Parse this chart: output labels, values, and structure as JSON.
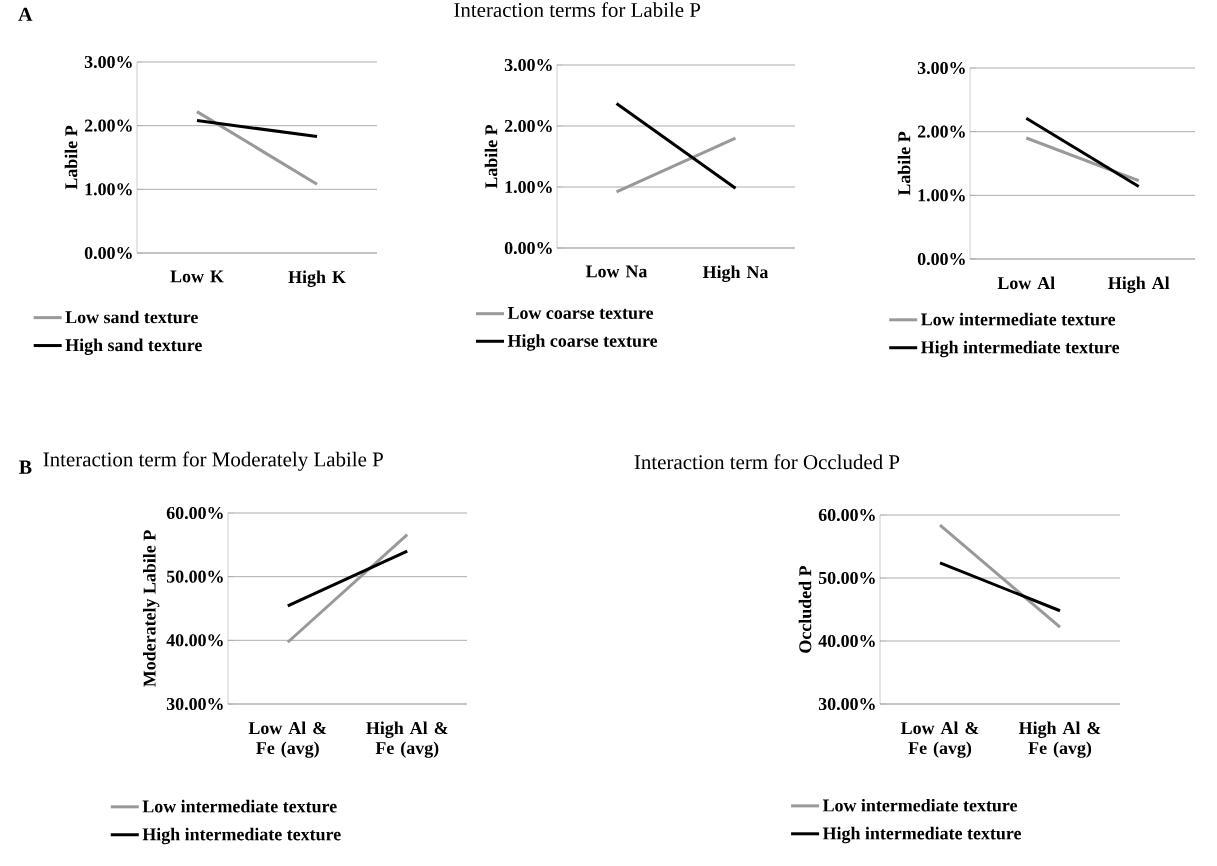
{
  "chart_data": [
    {
      "type": "line",
      "ylabel": "Labile P",
      "annotations": [
        "A"
      ],
      "categories": [
        "Low K",
        "High K"
      ],
      "ylim": [
        0,
        3
      ],
      "yticks": [
        {
          "value": 0,
          "label": "0.00%"
        },
        {
          "value": 1,
          "label": "1.00%"
        },
        {
          "value": 2,
          "label": "2.00%"
        },
        {
          "value": 3,
          "label": "3.00%"
        }
      ],
      "grid": "y",
      "legend": "bottom",
      "series": [
        {
          "name": "Low sand texture",
          "color": "#999999",
          "values": [
            2.22,
            1.08
          ]
        },
        {
          "name": "High sand texture",
          "color": "#000000",
          "values": [
            2.08,
            1.83
          ]
        }
      ]
    },
    {
      "type": "line",
      "title": "Interaction terms for Labile P",
      "ylabel": "Labile P",
      "categories": [
        "Low Na",
        "High Na"
      ],
      "ylim": [
        0,
        3
      ],
      "yticks": [
        {
          "value": 0,
          "label": "0.00%"
        },
        {
          "value": 1,
          "label": "1.00%"
        },
        {
          "value": 2,
          "label": "2.00%"
        },
        {
          "value": 3,
          "label": "3.00%"
        }
      ],
      "grid": "y",
      "legend": "bottom",
      "series": [
        {
          "name": "Low coarse texture",
          "color": "#999999",
          "values": [
            0.92,
            1.8
          ]
        },
        {
          "name": "High coarse texture",
          "color": "#000000",
          "values": [
            2.37,
            0.98
          ]
        }
      ]
    },
    {
      "type": "line",
      "ylabel": "Labile P",
      "categories": [
        "Low Al",
        "High Al"
      ],
      "ylim": [
        0,
        3
      ],
      "yticks": [
        {
          "value": 0,
          "label": "0.00%"
        },
        {
          "value": 1,
          "label": "1.00%"
        },
        {
          "value": 2,
          "label": "2.00%"
        },
        {
          "value": 3,
          "label": "3.00%"
        }
      ],
      "grid": "y",
      "legend": "bottom",
      "series": [
        {
          "name": "Low intermediate texture",
          "color": "#999999",
          "values": [
            1.9,
            1.23
          ]
        },
        {
          "name": "High intermediate texture",
          "color": "#000000",
          "values": [
            2.21,
            1.14
          ]
        }
      ]
    },
    {
      "type": "line",
      "title": "Interaction term for Moderately Labile P",
      "ylabel": "Moderately Labile P",
      "annotations": [
        "B"
      ],
      "categories": [
        "Low Al & Fe (avg)",
        "High Al & Fe (avg)"
      ],
      "ylim": [
        30,
        60
      ],
      "yticks": [
        {
          "value": 30,
          "label": "30.00%"
        },
        {
          "value": 40,
          "label": "40.00%"
        },
        {
          "value": 50,
          "label": "50.00%"
        },
        {
          "value": 60,
          "label": "60.00%"
        }
      ],
      "grid": "y",
      "legend": "bottom",
      "series": [
        {
          "name": "Low intermediate texture",
          "color": "#999999",
          "values": [
            39.7,
            56.6
          ]
        },
        {
          "name": "High intermediate texture",
          "color": "#000000",
          "values": [
            45.4,
            54.0
          ]
        }
      ]
    },
    {
      "type": "line",
      "title": "Interaction term for Occluded P",
      "ylabel": "Occluded P",
      "categories": [
        "Low Al & Fe (avg)",
        "High Al & Fe (avg)"
      ],
      "ylim": [
        30,
        60
      ],
      "yticks": [
        {
          "value": 30,
          "label": "30.00%"
        },
        {
          "value": 40,
          "label": "40.00%"
        },
        {
          "value": 50,
          "label": "50.00%"
        },
        {
          "value": 60,
          "label": "60.00%"
        }
      ],
      "grid": "y",
      "legend": "bottom",
      "series": [
        {
          "name": "Low intermediate texture",
          "color": "#999999",
          "values": [
            58.4,
            42.2
          ]
        },
        {
          "name": "High intermediate texture",
          "color": "#000000",
          "values": [
            52.4,
            44.8
          ]
        }
      ]
    }
  ]
}
